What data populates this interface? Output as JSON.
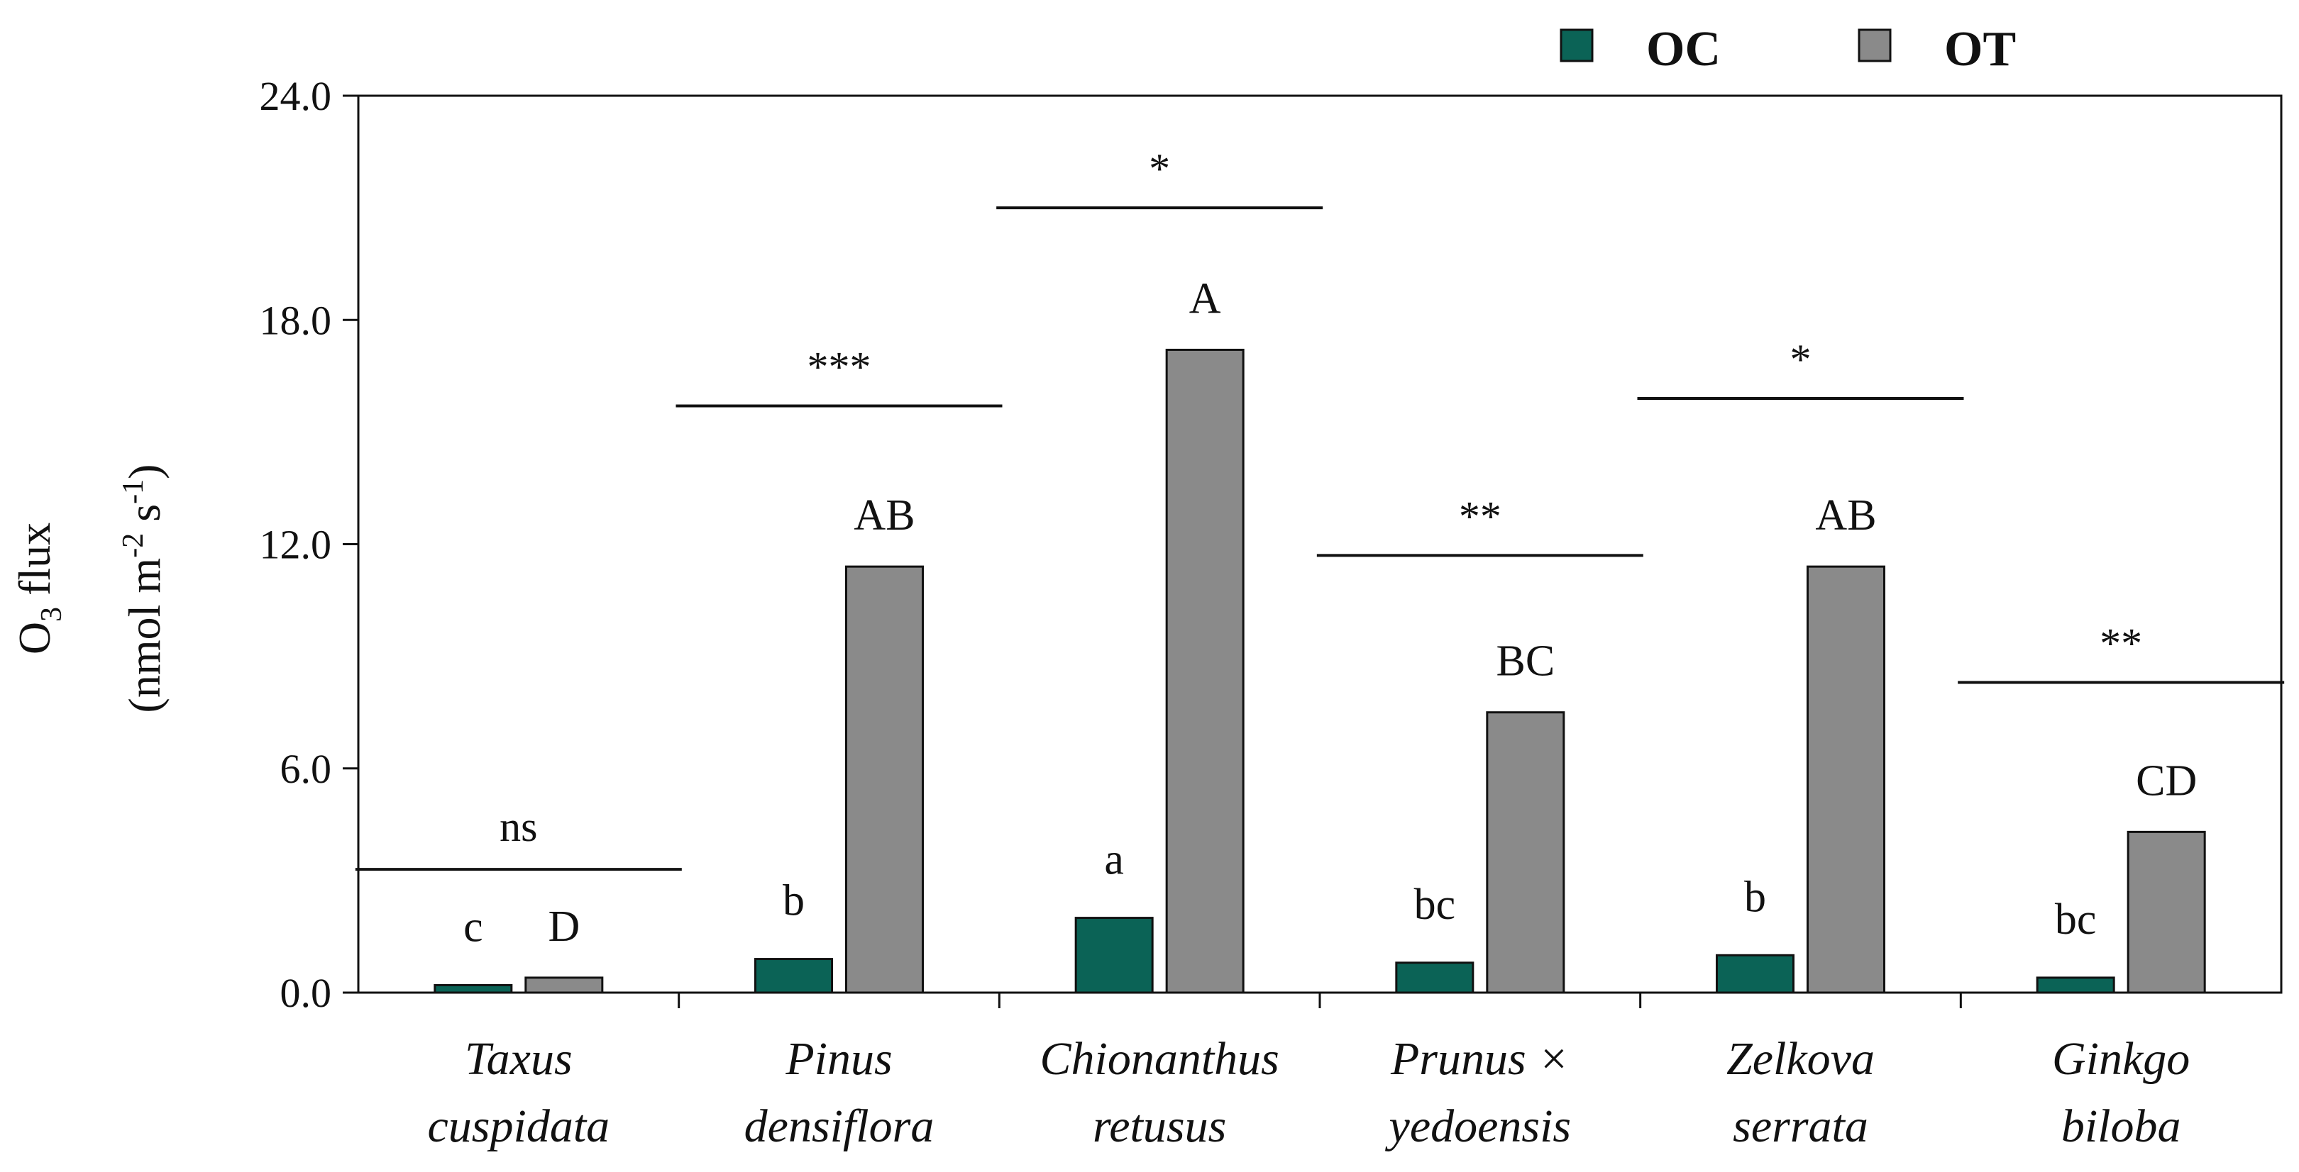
{
  "chart_data": {
    "type": "bar",
    "title": "",
    "ylabel_line1": "O",
    "ylabel_sub": "3",
    "ylabel_line1_rest": " flux",
    "ylabel_line2_a": "(nmol m",
    "ylabel_line2_sup1": "-2",
    "ylabel_line2_b": " s",
    "ylabel_line2_sup2": "-1",
    "ylabel_line2_c": ")",
    "ylim": [
      0,
      24
    ],
    "yticks": [
      "0.0",
      "6.0",
      "12.0",
      "18.0",
      "24.0"
    ],
    "ytick_values": [
      0,
      6,
      12,
      18,
      24
    ],
    "categories": [
      [
        "Taxus",
        "cuspidata"
      ],
      [
        "Pinus",
        "densiflora"
      ],
      [
        "Chionanthus",
        "retusus"
      ],
      [
        "Prunus ×",
        "yedoensis"
      ],
      [
        "Zelkova",
        "serrata"
      ],
      [
        "Ginkgo",
        "biloba"
      ]
    ],
    "series": [
      {
        "name": "OC",
        "color": "#0b6356",
        "values": [
          0.2,
          0.9,
          2.0,
          0.8,
          1.0,
          0.4
        ],
        "letters": [
          "c",
          "b",
          "a",
          "bc",
          "b",
          "bc"
        ]
      },
      {
        "name": "OT",
        "color": "#8a8a8a",
        "values": [
          0.4,
          11.4,
          17.2,
          7.5,
          11.4,
          4.3
        ],
        "letters": [
          "D",
          "AB",
          "A",
          "BC",
          "AB",
          "CD"
        ]
      }
    ],
    "significance": [
      {
        "label": "ns",
        "y": 3.3
      },
      {
        "label": "***",
        "y": 15.7
      },
      {
        "label": "*",
        "y": 21.0
      },
      {
        "label": "**",
        "y": 11.7
      },
      {
        "label": "*",
        "y": 15.9
      },
      {
        "label": "**",
        "y": 8.3
      }
    ],
    "legend": {
      "position": "top-right"
    }
  }
}
